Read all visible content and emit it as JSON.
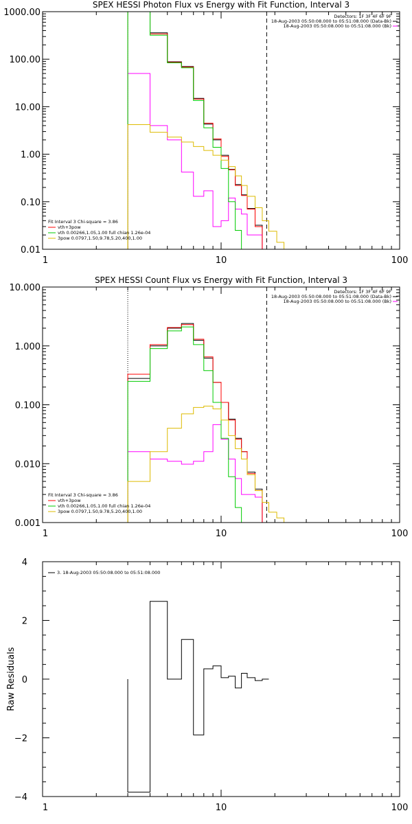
{
  "chart_data": [
    {
      "type": "line",
      "title": "SPEX HESSI Photon Flux vs Energy with Fit Function, Interval 3",
      "xscale": "log",
      "yscale": "log",
      "xlim": [
        1,
        100
      ],
      "ylim": [
        0.01,
        1000
      ],
      "xticks": [
        "1",
        "10",
        "100"
      ],
      "yticks": [
        "0.01",
        "0.10",
        "1.00",
        "10.00",
        "100.00",
        "1000.00"
      ],
      "header_lines": [
        "Detectors: 1F 3F 4F 6F 9F",
        "18-Aug-2003 05:50:08.000 to 05:51:08.000 (Data-Bk)",
        "18-Aug-2003 05:50:08.000 to 05:51:08.000 (Bk)"
      ],
      "fit_lines": [
        "Fit Interval 3   Chi-square = 3.86",
        "vth+3pow",
        "vth 0.00266,1.05,1.00  full chian 1.26e-04",
        "3pow 0.0797,1.50,9.78,5.20,400,1.00"
      ],
      "vline_dotted": 3.0,
      "vline_dashed": 18.0,
      "edges": [
        3.0,
        4.0,
        5.0,
        6.0,
        7.0,
        8.0,
        9.0,
        10.0,
        11.0,
        12.0,
        13.0,
        14.0,
        15.5,
        17.0,
        18.5,
        20.5,
        22.5,
        25.0
      ],
      "series": [
        {
          "name": "Data-Bk",
          "color": "#000000",
          "values": [
            1000,
            360,
            88,
            70,
            15,
            4.3,
            2.0,
            0.95,
            0.48,
            0.23,
            0.14,
            0.072,
            0.032,
            null,
            null,
            null,
            null
          ]
        },
        {
          "name": "Bk",
          "color": "#ff00ff",
          "values": [
            50,
            4.0,
            2.0,
            0.42,
            0.13,
            0.17,
            0.03,
            0.04,
            0.12,
            0.07,
            0.055,
            0.02,
            0.02,
            null,
            null,
            null,
            null
          ]
        },
        {
          "name": "vth+3pow",
          "color": "#ff0000",
          "values": [
            1000,
            340,
            86,
            68,
            14.5,
            4.5,
            2.1,
            0.9,
            0.47,
            0.22,
            0.135,
            0.07,
            0.03,
            null,
            null,
            null,
            null
          ]
        },
        {
          "name": "vth",
          "color": "#00cc00",
          "values": [
            1000,
            320,
            84,
            66,
            13.5,
            3.6,
            1.4,
            0.5,
            0.1,
            0.025,
            0.01,
            null,
            null,
            null,
            null,
            null,
            null
          ]
        },
        {
          "name": "3pow",
          "color": "#ddbb00",
          "values": [
            4.2,
            2.9,
            2.3,
            1.8,
            1.45,
            1.2,
            0.95,
            0.75,
            0.55,
            0.35,
            0.22,
            0.13,
            0.075,
            0.04,
            0.024,
            0.014,
            0.01
          ]
        }
      ]
    },
    {
      "type": "line",
      "title": "SPEX HESSI Count Flux vs Energy with Fit Function, Interval 3",
      "xscale": "log",
      "yscale": "log",
      "xlim": [
        1,
        100
      ],
      "ylim": [
        0.001,
        10
      ],
      "xticks": [
        "1",
        "10",
        "100"
      ],
      "yticks": [
        "0.001",
        "0.010",
        "0.100",
        "1.000",
        "10.000"
      ],
      "header_lines": [
        "Detectors: 1F 3F 4F 6F 9F",
        "18-Aug-2003 05:50:08.000 to 05:51:08.000 (Data-Bk)",
        "18-Aug-2003 05:50:08.000 to 05:51:08.000 (Bk)"
      ],
      "fit_lines": [
        "Fit Interval 3   Chi-square = 3.86",
        "vth+3pow",
        "vth 0.00266,1.05,1.00  full chian 1.26e-04",
        "3pow 0.0797,1.50,9.78,5.20,400,1.00"
      ],
      "vline_dotted": 3.0,
      "vline_dashed": 18.0,
      "edges": [
        3.0,
        4.0,
        5.0,
        6.0,
        7.0,
        8.0,
        9.0,
        10.0,
        11.0,
        12.0,
        13.0,
        14.0,
        15.5,
        17.0,
        18.5,
        20.5,
        22.5,
        25.0
      ],
      "series": [
        {
          "name": "Data-Bk",
          "color": "#000000",
          "values": [
            0.28,
            1.0,
            2.0,
            2.4,
            1.25,
            0.62,
            0.24,
            0.11,
            0.057,
            0.027,
            0.016,
            0.0072,
            0.0037,
            null,
            null,
            null,
            null
          ]
        },
        {
          "name": "Bk",
          "color": "#ff00ff",
          "values": [
            0.016,
            0.012,
            0.011,
            0.0098,
            0.011,
            0.016,
            0.046,
            0.026,
            0.012,
            0.0056,
            0.003,
            0.003,
            0.0027,
            null,
            null,
            null,
            null
          ]
        },
        {
          "name": "vth+3pow",
          "color": "#ff0000",
          "values": [
            0.33,
            1.05,
            2.05,
            2.3,
            1.3,
            0.65,
            0.24,
            0.11,
            0.055,
            0.026,
            0.016,
            0.0068,
            0.0035,
            null,
            null,
            null,
            null
          ]
        },
        {
          "name": "vth",
          "color": "#00cc00",
          "values": [
            0.25,
            0.9,
            1.8,
            2.1,
            1.05,
            0.38,
            0.11,
            0.027,
            0.006,
            0.0018,
            null,
            null,
            null,
            null,
            null,
            null,
            null
          ]
        },
        {
          "name": "3pow",
          "color": "#ddbb00",
          "values": [
            0.005,
            0.016,
            0.04,
            0.07,
            0.09,
            0.095,
            0.085,
            0.055,
            0.03,
            0.018,
            0.012,
            0.0065,
            0.0035,
            0.0022,
            0.0015,
            0.0012,
            0.001
          ]
        }
      ]
    },
    {
      "type": "line",
      "title": "",
      "xscale": "log",
      "yscale": "linear",
      "xlim": [
        1,
        100
      ],
      "ylim": [
        -4,
        4
      ],
      "xticks": [
        "1",
        "10",
        "100"
      ],
      "yticks": [
        "−4",
        "−2",
        "0",
        "2",
        "4"
      ],
      "ylabel": "Raw Residuals",
      "legend": "3. 18-Aug-2003 05:50:08.000 to 05:51:08.000",
      "edges": [
        3.0,
        4.0,
        5.0,
        6.0,
        7.0,
        8.0,
        9.0,
        10.0,
        11.0,
        12.0,
        13.0,
        14.0,
        15.5,
        17.0,
        18.5
      ],
      "values": [
        -3.85,
        2.65,
        0.0,
        1.35,
        -1.9,
        0.35,
        0.45,
        0.05,
        0.1,
        -0.3,
        0.2,
        0.05,
        -0.05,
        0.0
      ]
    }
  ]
}
